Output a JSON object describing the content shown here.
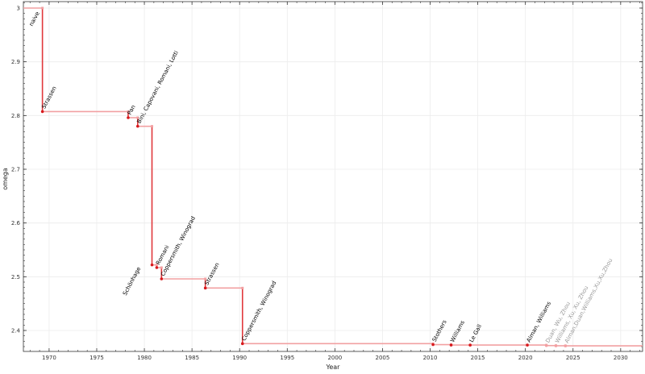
{
  "chart_data": {
    "type": "line",
    "step": true,
    "xlabel": "Year",
    "ylabel": "omega",
    "xlim": [
      1967.3,
      2032.3
    ],
    "ylim": [
      2.361,
      3.012
    ],
    "xticks": [
      1970,
      1975,
      1980,
      1985,
      1990,
      1995,
      2000,
      2005,
      2010,
      2015,
      2020,
      2025,
      2030
    ],
    "yticks": [
      2.4,
      2.5,
      2.6,
      2.7,
      2.8,
      2.9,
      3
    ],
    "ytick_labels": [
      "2.4",
      "2.5",
      "2.6",
      "2.7",
      "2.8",
      "2.9",
      "3"
    ],
    "grid": true,
    "colors": {
      "point": "#d7191c",
      "step_horizontal": "#f2a0a2",
      "step_vertical": "#e0383b",
      "label": "#000000",
      "label_faded": "#999999",
      "point_faded": "#f2a0a2"
    },
    "points": [
      {
        "label": "naive",
        "x": 1967.3,
        "y": 3.0,
        "faded": false
      },
      {
        "label": "Strassen",
        "x": 1969.3,
        "y": 2.8074,
        "faded": false
      },
      {
        "label": "Pan",
        "x": 1978.3,
        "y": 2.796,
        "faded": false
      },
      {
        "label": "Bini, Capovani, Romani, Lotti",
        "x": 1979.3,
        "y": 2.78,
        "faded": false
      },
      {
        "label": "Schönhage",
        "x": 1980.8,
        "y": 2.522,
        "faded": false
      },
      {
        "label": "Romani",
        "x": 1981.3,
        "y": 2.517,
        "faded": false
      },
      {
        "label": "Coppersmith, Winograd",
        "x": 1981.8,
        "y": 2.496,
        "faded": false
      },
      {
        "label": "Strassen",
        "x": 1986.4,
        "y": 2.479,
        "faded": false
      },
      {
        "label": "Coppersmith, Winograd",
        "x": 1990.3,
        "y": 2.3755,
        "faded": false
      },
      {
        "label": "Stothers",
        "x": 2010.3,
        "y": 2.3737,
        "faded": false
      },
      {
        "label": "Williams",
        "x": 2012.2,
        "y": 2.3729,
        "faded": false
      },
      {
        "label": "Le Gall",
        "x": 2014.2,
        "y": 2.37286,
        "faded": false
      },
      {
        "label": "Alman, Williams",
        "x": 2020.2,
        "y": 2.37286,
        "faded": false
      },
      {
        "label": "Duan, Wu, Zhou",
        "x": 2022.2,
        "y": 2.37188,
        "faded": true
      },
      {
        "label": "Williams, Xu, Xu, Zhou",
        "x": 2023.2,
        "y": 2.37155,
        "faded": true
      },
      {
        "label": "Alman,Duan,Williams,Xu,Xu,Zhou",
        "x": 2024.2,
        "y": 2.37134,
        "faded": true
      }
    ]
  }
}
